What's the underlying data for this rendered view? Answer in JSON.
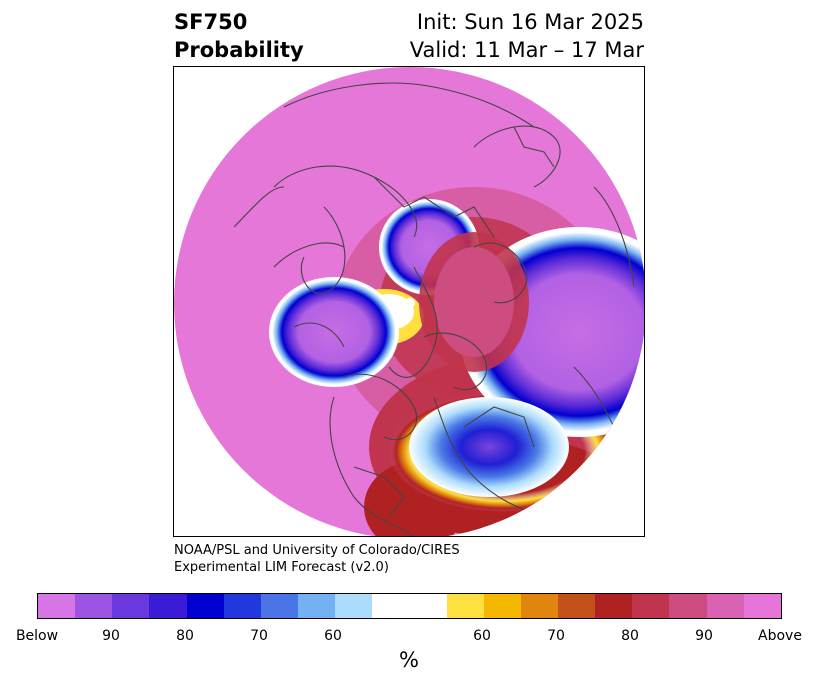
{
  "title": {
    "line1": "SF750",
    "line2": "Probability",
    "init": "Init: Sun 16 Mar 2025",
    "valid": "Valid: 11 Mar – 17 Mar"
  },
  "credit": {
    "line1": "NOAA/PSL and University of Colorado/CIRES",
    "line2": "Experimental LIM Forecast (v2.0)"
  },
  "colorbar": {
    "unit": "%",
    "colors": [
      "#d675e6",
      "#9c55e2",
      "#6a38dc",
      "#3a1bd6",
      "#0000d0",
      "#2038dd",
      "#4b75e6",
      "#74b1f2",
      "#acdcfb",
      "#ffffff",
      "#ffffff",
      "#ffe040",
      "#f4b800",
      "#e0860f",
      "#c4511a",
      "#b02222",
      "#c1344d",
      "#cd4d80",
      "#da62b3",
      "#e575d8"
    ],
    "ticks": [
      "Below",
      "90",
      "80",
      "70",
      "60",
      "60",
      "70",
      "80",
      "90",
      "Above"
    ]
  },
  "map": {
    "background": "#e577d9",
    "coastline_color": "#444444"
  }
}
